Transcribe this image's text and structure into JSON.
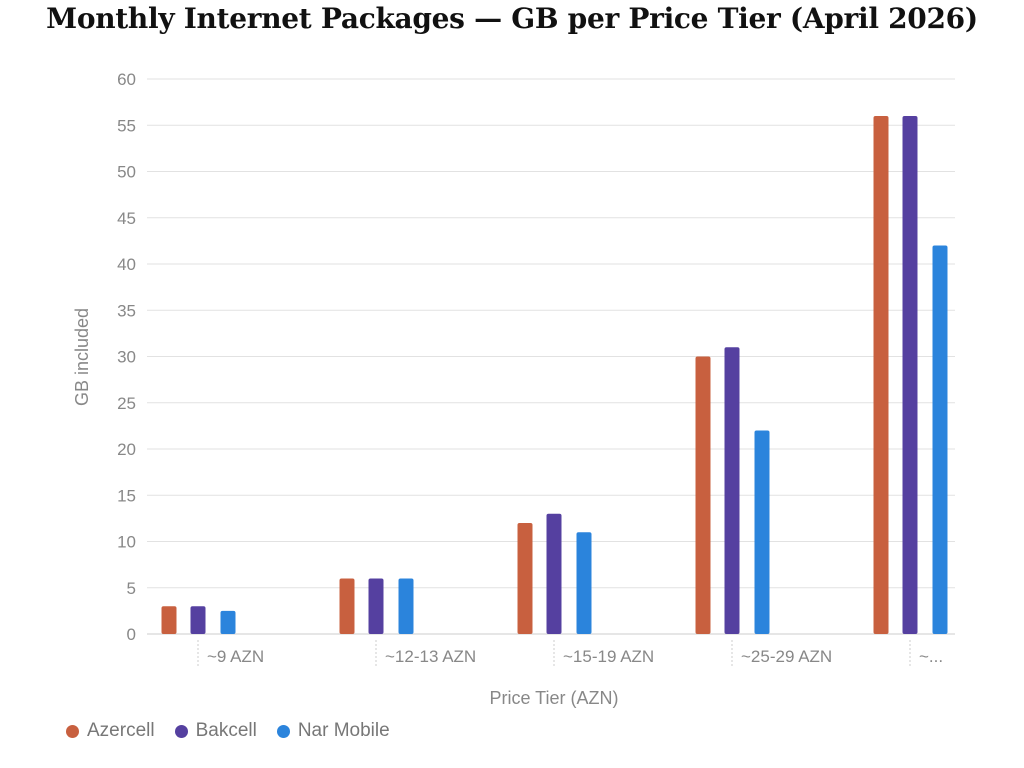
{
  "chart_data": {
    "type": "bar",
    "title": "Monthly Internet Packages — GB per Price Tier (April 2026)",
    "xlabel": "Price Tier (AZN)",
    "ylabel": "GB included",
    "ylim": [
      0,
      60
    ],
    "yticks": [
      0,
      5,
      10,
      15,
      20,
      25,
      30,
      35,
      40,
      45,
      50,
      55,
      60
    ],
    "grid": true,
    "legend_position": "bottom-left",
    "categories": [
      "~9 AZN",
      "~12-13 AZN",
      "~15-19 AZN",
      "~25-29 AZN",
      "~..."
    ],
    "series": [
      {
        "name": "Azercell",
        "color": "#C8603F",
        "values": [
          3,
          6,
          12,
          30,
          56
        ]
      },
      {
        "name": "Bakcell",
        "color": "#5540A0",
        "values": [
          3,
          6,
          13,
          31,
          56
        ]
      },
      {
        "name": "Nar Mobile",
        "color": "#2B84DC",
        "values": [
          2.5,
          6,
          11,
          22,
          42
        ]
      }
    ]
  }
}
